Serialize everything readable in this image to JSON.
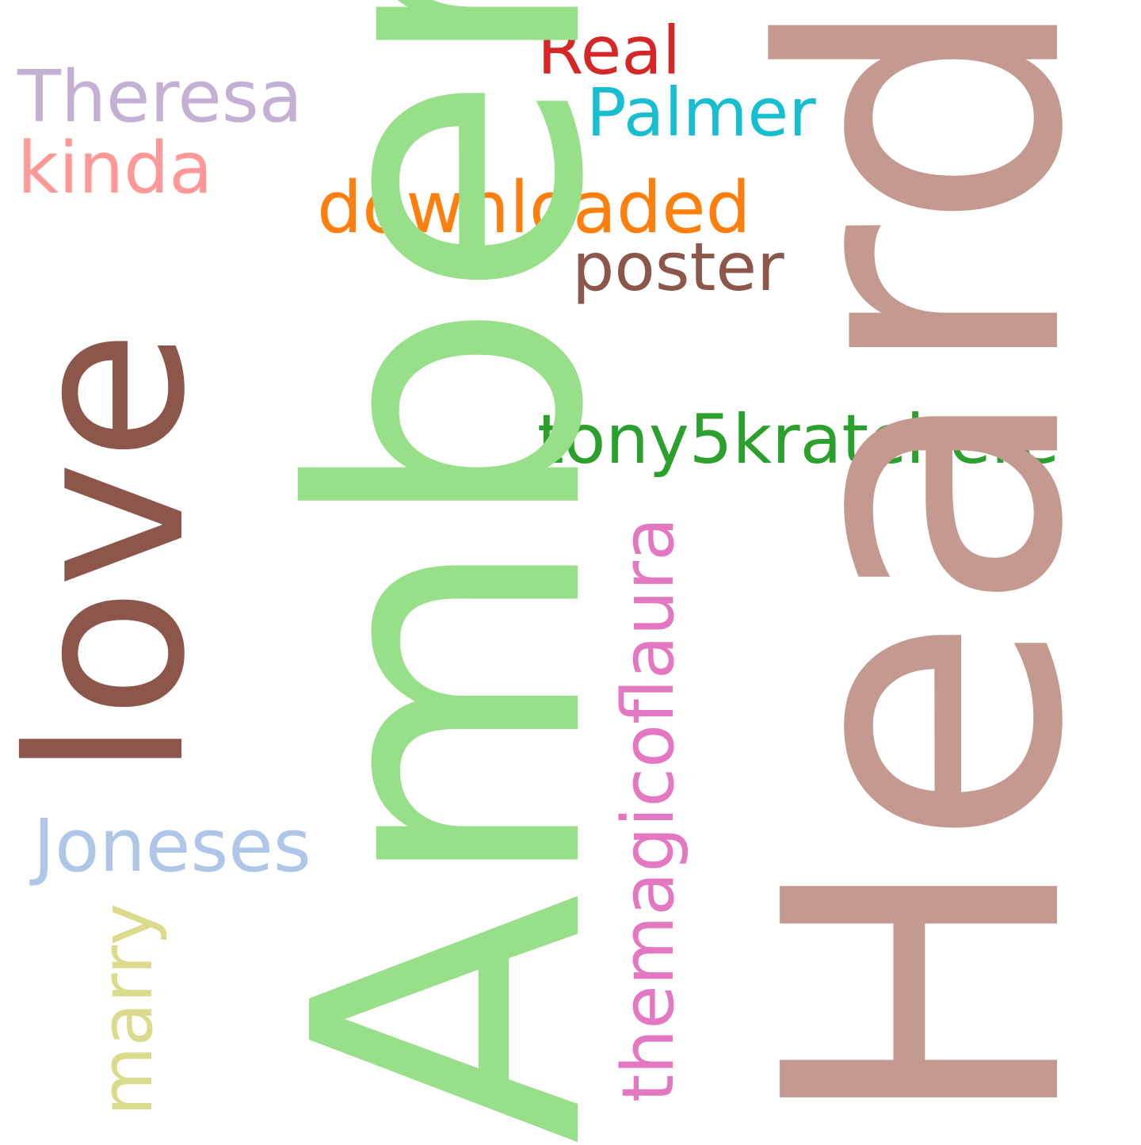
{
  "words": {
    "heard": {
      "text": "Heard",
      "color": "#c49a90"
    },
    "amber": {
      "text": "Amber",
      "color": "#98df8a"
    },
    "love": {
      "text": "love",
      "color": "#8c564b"
    },
    "downloaded": {
      "text": "downloaded",
      "color": "#ff7f0e"
    },
    "poster": {
      "text": "poster",
      "color": "#8c564b"
    },
    "tony": {
      "text": "tony5kratchere",
      "color": "#2ca02c"
    },
    "themagic": {
      "text": "themagicoflaura",
      "color": "#e377c2"
    },
    "joneses": {
      "text": "Joneses",
      "color": "#aec7e8"
    },
    "marry": {
      "text": "marry",
      "color": "#dbdb8d"
    },
    "theresa": {
      "text": "Theresa",
      "color": "#c5b0d5"
    },
    "kinda": {
      "text": "kinda",
      "color": "#ff9896"
    },
    "real": {
      "text": "Real",
      "color": "#d62728"
    },
    "palmer": {
      "text": "Palmer",
      "color": "#17becf"
    }
  }
}
